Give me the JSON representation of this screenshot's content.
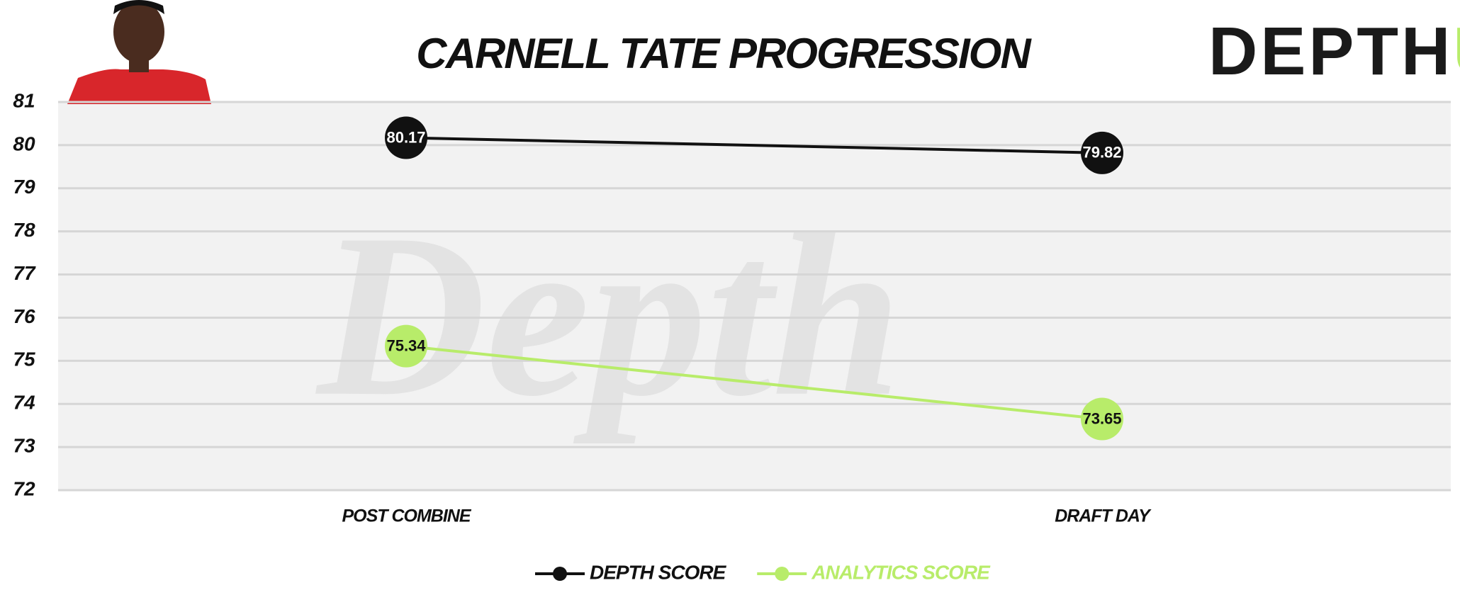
{
  "chart_data": {
    "type": "line",
    "title": "CARNELL TATE PROGRESSION",
    "logo": {
      "main": "DEPTH",
      "accent": "U"
    },
    "watermark": "Depth",
    "categories": [
      "POST COMBINE",
      "DRAFT DAY"
    ],
    "series": [
      {
        "name": "DEPTH SCORE",
        "color": "#111111",
        "values": [
          80.17,
          79.82
        ]
      },
      {
        "name": "ANALYTICS SCORE",
        "color": "#b8ec6a",
        "values": [
          75.34,
          73.65
        ]
      }
    ],
    "ylim": [
      72,
      81
    ],
    "yticks": [
      72,
      73,
      74,
      75,
      76,
      77,
      78,
      79,
      80,
      81
    ],
    "grid": true,
    "legend": "bottom"
  }
}
